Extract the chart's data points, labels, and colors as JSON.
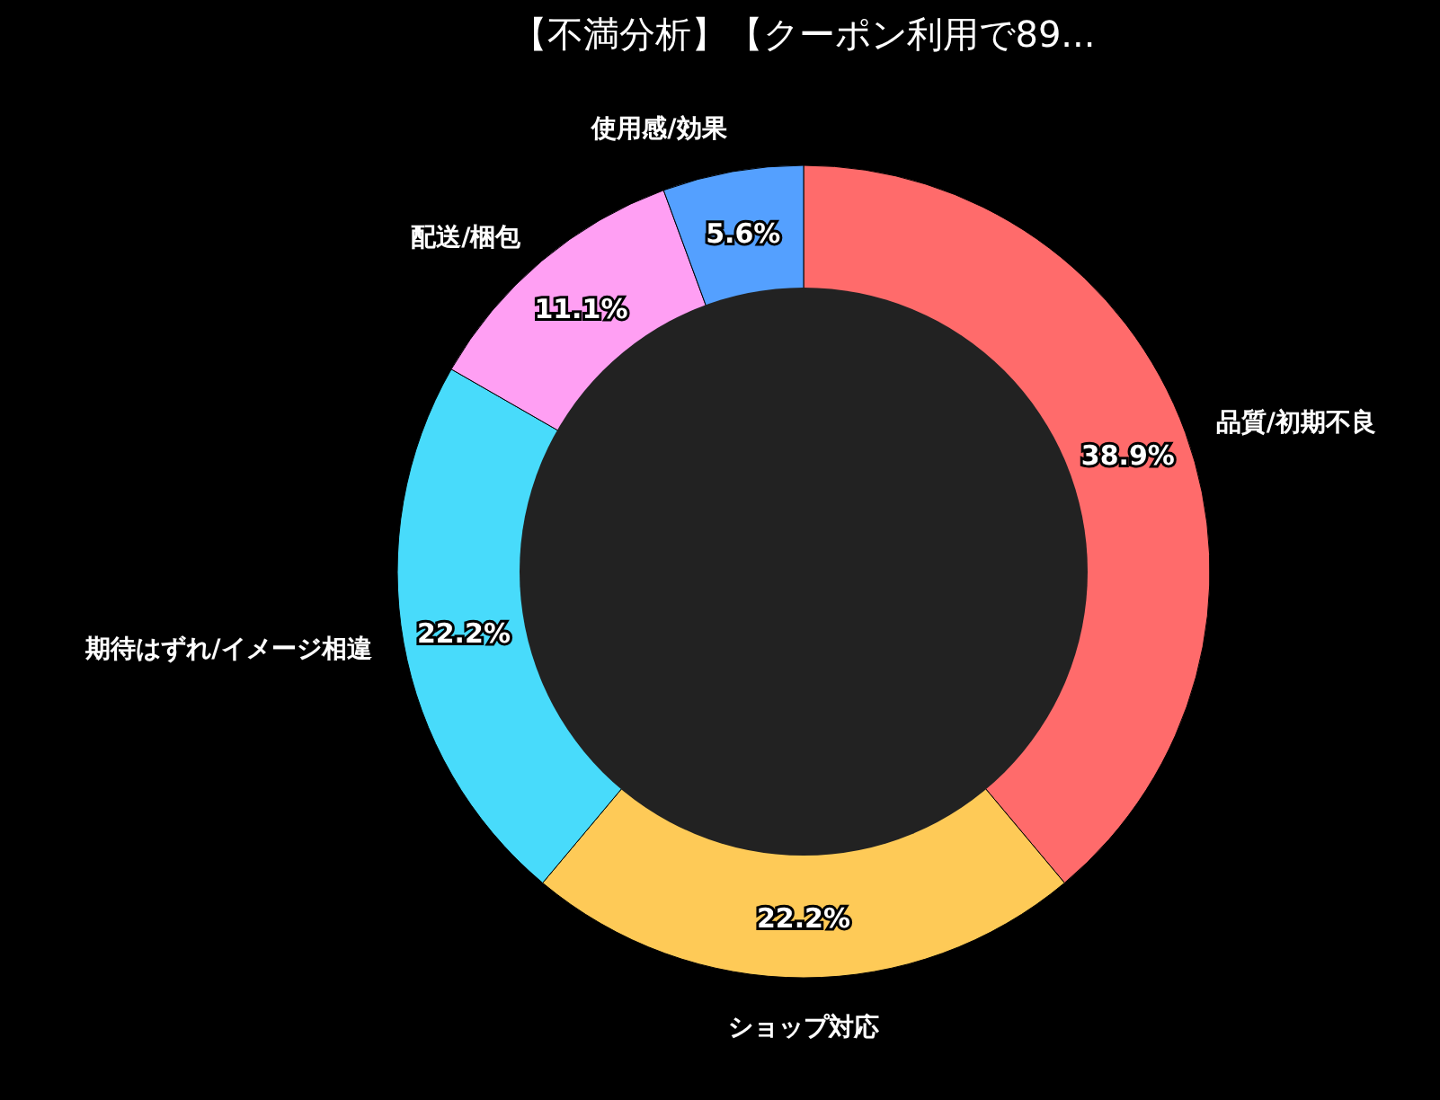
{
  "chart_data": {
    "type": "donut",
    "title": "【不満分析】【クーポン利用で89...",
    "categories": [
      "品質/初期不良",
      "ショップ対応",
      "期待はずれ/イメージ相違",
      "配送/梱包",
      "使用感/効果"
    ],
    "values": [
      38.9,
      22.2,
      22.2,
      11.1,
      5.6
    ],
    "colors": [
      "#ff6b6b",
      "#feca57",
      "#48dbfb",
      "#ff9ff3",
      "#54a0ff"
    ],
    "value_labels": [
      "38.9%",
      "22.2%",
      "22.2%",
      "11.1%",
      "5.6%"
    ]
  }
}
